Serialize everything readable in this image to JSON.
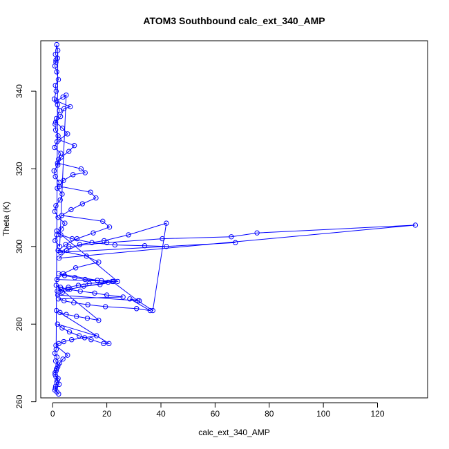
{
  "chart_data": {
    "type": "scatter",
    "title": "ATOM3 Southbound calc_ext_340_AMP",
    "xlabel": "calc_ext_340_AMP",
    "ylabel": "Theta (K)",
    "xlim": [
      -4.4,
      138.5
    ],
    "ylim": [
      261.0,
      353.0
    ],
    "x_ticks": [
      0,
      20,
      40,
      60,
      80,
      100,
      120
    ],
    "y_ticks": [
      260,
      280,
      300,
      320,
      340
    ],
    "grid": false,
    "legend": "none",
    "marker": "open-circle",
    "connected": true,
    "color": "#0000ff",
    "series": [
      {
        "x": [
          1.2,
          0.8,
          1.5,
          2.1,
          1.0,
          1.3,
          0.6,
          1.8,
          2.5,
          1.4,
          0.9,
          1.1,
          2.0,
          1.6,
          0.7,
          3.0,
          2.2,
          1.9,
          0.5,
          1.0,
          2.4,
          1.7,
          3.5,
          2.8,
          1.2,
          0.8,
          2.0,
          4.5,
          3.2,
          1.5,
          0.9,
          2.6,
          5.0,
          3.8,
          1.4,
          6.5,
          4.2,
          2.9,
          1.1,
          3.6,
          5.5,
          2.3,
          8.0,
          6.0,
          3.1,
          1.8,
          10.5,
          12.0,
          7.5,
          4.0,
          2.5,
          14.0,
          16.0,
          11.0,
          6.8,
          3.4,
          18.5,
          21.0,
          15.0,
          9.0,
          4.8,
          2.0,
          12.5,
          17.0,
          8.5,
          3.9,
          1.6,
          22.0,
          31.5,
          37.0,
          42.0,
          28.0,
          19.0,
          10.0,
          5.2,
          2.4,
          134.0,
          75.5,
          66.0,
          40.5,
          20.0,
          6.0,
          2.8,
          67.5,
          42.0,
          34.0,
          23.0,
          14.5,
          7.2,
          3.0,
          1.5,
          24.0,
          18.0,
          12.0,
          8.2,
          4.4,
          2.2,
          16.5,
          20.5,
          13.5,
          9.5,
          5.8,
          3.3,
          1.7,
          22.5,
          17.5,
          11.5,
          6.4,
          3.6,
          1.9,
          32.0,
          28.5,
          36.0,
          31.0,
          19.5,
          13.0,
          7.8,
          4.2,
          2.1,
          26.0,
          20.0,
          15.5,
          10.2,
          5.6,
          2.9,
          1.3,
          17.0,
          12.8,
          8.8,
          5.0,
          2.7,
          1.4,
          20.8,
          18.8,
          14.2,
          9.8,
          6.2,
          3.5,
          1.8,
          16.2,
          11.8,
          7.0,
          4.1,
          2.3,
          1.2,
          5.5,
          3.8,
          2.6,
          1.9,
          1.3,
          0.9,
          2.0,
          1.5,
          1.1,
          0.8,
          2.2,
          1.6,
          1.0,
          2.4,
          1.7,
          1.2,
          0.9,
          1.4,
          2.0,
          1.1,
          1.6,
          0.8,
          1.3,
          1.9,
          1.5,
          1.0,
          1.8,
          1.2
        ],
        "y": [
          348.0,
          346.5,
          345.0,
          343.0,
          341.5,
          340.0,
          338.0,
          336.5,
          335.0,
          333.0,
          331.5,
          330.0,
          328.5,
          327.0,
          325.5,
          324.0,
          322.5,
          321.0,
          319.5,
          318.0,
          316.5,
          315.0,
          313.5,
          312.0,
          310.5,
          309.0,
          307.5,
          306.0,
          304.5,
          303.0,
          301.5,
          300.0,
          339.0,
          338.5,
          337.5,
          336.0,
          335.5,
          333.5,
          332.0,
          330.5,
          329.0,
          327.5,
          326.0,
          324.5,
          323.0,
          321.5,
          320.0,
          319.0,
          318.5,
          317.0,
          315.5,
          314.0,
          312.5,
          311.0,
          309.5,
          308.0,
          306.5,
          305.0,
          303.5,
          302.0,
          300.5,
          299.0,
          297.5,
          296.0,
          294.5,
          293.0,
          291.5,
          291.0,
          286.0,
          283.5,
          306.0,
          303.0,
          301.5,
          300.5,
          299.0,
          297.0,
          305.5,
          303.5,
          302.5,
          302.0,
          301.0,
          300.0,
          298.5,
          301.0,
          300.0,
          300.2,
          300.4,
          301.0,
          302.0,
          303.0,
          304.0,
          291.0,
          291.2,
          291.5,
          292.0,
          292.5,
          293.0,
          291.3,
          290.8,
          290.5,
          290.0,
          289.5,
          289.0,
          288.5,
          291.0,
          290.2,
          289.8,
          289.0,
          288.2,
          287.5,
          286.0,
          286.5,
          283.5,
          284.0,
          284.5,
          285.0,
          285.5,
          286.0,
          286.5,
          287.0,
          287.5,
          288.0,
          288.5,
          289.0,
          289.5,
          290.0,
          281.0,
          281.5,
          282.0,
          282.5,
          283.0,
          283.5,
          275.0,
          275.0,
          276.0,
          277.0,
          278.0,
          279.0,
          280.0,
          277.0,
          276.5,
          276.0,
          275.5,
          275.0,
          274.5,
          272.0,
          271.0,
          270.0,
          269.0,
          268.0,
          267.0,
          266.0,
          265.0,
          264.0,
          263.0,
          262.0,
          262.5,
          263.5,
          264.5,
          265.5,
          266.5,
          267.5,
          268.5,
          269.5,
          270.5,
          271.5,
          272.5,
          273.5,
          350.5,
          352.0,
          349.5,
          348.5,
          347.5
        ]
      }
    ]
  }
}
